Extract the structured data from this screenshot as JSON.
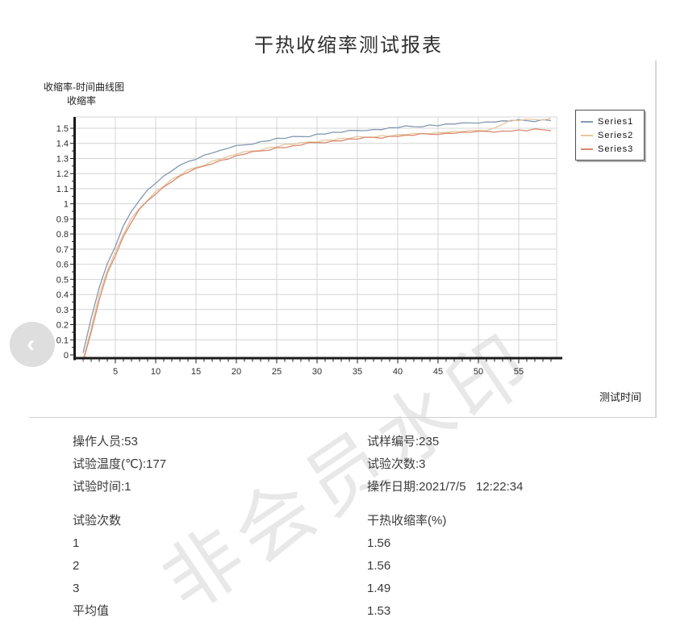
{
  "page": {
    "title": "干热收缩率测试报表",
    "watermark": "非会员水印"
  },
  "nav": {
    "back_glyph": "‹"
  },
  "chart": {
    "panel_label": "收缩率-时间曲线图",
    "y_axis_title": "收缩率",
    "x_axis_title": "测试时间",
    "colors": {
      "grid": "#d4d4d4",
      "axis": "#1b1b1b",
      "legend_border": "#4f4f4f"
    }
  },
  "chart_data": {
    "type": "line",
    "title": "收缩率-时间曲线图",
    "xlabel": "测试时间",
    "ylabel": "收缩率",
    "xlim": [
      0,
      59.7
    ],
    "ylim": [
      0,
      1.575
    ],
    "grid": true,
    "legend_position": "right-top",
    "x_ticks": [
      5,
      10,
      15,
      20,
      25,
      30,
      35,
      40,
      45,
      50,
      55
    ],
    "y_ticks": [
      0,
      0.1,
      0.2,
      0.3,
      0.4,
      0.5,
      0.6,
      0.7,
      0.8,
      0.9,
      1,
      1.1,
      1.2,
      1.3,
      1.4,
      1.5
    ],
    "x": [
      1,
      2,
      3,
      4,
      5,
      6,
      7,
      8,
      9,
      10,
      11,
      12,
      13,
      14,
      15,
      16,
      17,
      18,
      19,
      20,
      21,
      22,
      23,
      24,
      25,
      26,
      27,
      28,
      29,
      30,
      31,
      32,
      33,
      34,
      35,
      36,
      37,
      38,
      39,
      40,
      41,
      42,
      43,
      44,
      45,
      46,
      47,
      48,
      49,
      50,
      51,
      52,
      53,
      54,
      55,
      56,
      57,
      58,
      59
    ],
    "series": [
      {
        "name": "Series1",
        "color": "#8498b0",
        "final_value": 1.56,
        "values": [
          0.02,
          0.24,
          0.45,
          0.6,
          0.72,
          0.85,
          0.95,
          1.03,
          1.09,
          1.14,
          1.18,
          1.22,
          1.25,
          1.28,
          1.3,
          1.32,
          1.34,
          1.35,
          1.37,
          1.38,
          1.39,
          1.4,
          1.41,
          1.42,
          1.43,
          1.435,
          1.44,
          1.445,
          1.45,
          1.46,
          1.465,
          1.47,
          1.475,
          1.48,
          1.485,
          1.49,
          1.49,
          1.495,
          1.5,
          1.505,
          1.51,
          1.51,
          1.515,
          1.52,
          1.52,
          1.525,
          1.53,
          1.53,
          1.535,
          1.54,
          1.54,
          1.545,
          1.545,
          1.55,
          1.55,
          1.55,
          1.55,
          1.555,
          1.555
        ]
      },
      {
        "name": "Series2",
        "color": "#e6c79e",
        "final_value": 1.56,
        "values": [
          -0.03,
          0.18,
          0.4,
          0.56,
          0.68,
          0.8,
          0.9,
          0.97,
          1.03,
          1.08,
          1.12,
          1.16,
          1.19,
          1.22,
          1.24,
          1.26,
          1.28,
          1.3,
          1.31,
          1.33,
          1.34,
          1.35,
          1.36,
          1.37,
          1.38,
          1.39,
          1.395,
          1.4,
          1.41,
          1.415,
          1.42,
          1.425,
          1.43,
          1.435,
          1.44,
          1.44,
          1.445,
          1.45,
          1.45,
          1.455,
          1.46,
          1.46,
          1.465,
          1.47,
          1.47,
          1.475,
          1.475,
          1.48,
          1.48,
          1.485,
          1.49,
          1.5,
          1.53,
          1.55,
          1.552,
          1.555,
          1.558,
          1.56,
          1.565
        ]
      },
      {
        "name": "Series3",
        "color": "#d98b70",
        "final_value": 1.49,
        "values": [
          -0.05,
          0.15,
          0.37,
          0.54,
          0.66,
          0.78,
          0.88,
          0.96,
          1.02,
          1.07,
          1.11,
          1.15,
          1.18,
          1.21,
          1.23,
          1.25,
          1.27,
          1.285,
          1.3,
          1.315,
          1.33,
          1.34,
          1.35,
          1.36,
          1.37,
          1.375,
          1.38,
          1.39,
          1.4,
          1.405,
          1.41,
          1.415,
          1.42,
          1.425,
          1.43,
          1.435,
          1.44,
          1.44,
          1.445,
          1.45,
          1.45,
          1.455,
          1.46,
          1.46,
          1.465,
          1.465,
          1.47,
          1.47,
          1.475,
          1.475,
          1.48,
          1.48,
          1.48,
          1.485,
          1.485,
          1.485,
          1.49,
          1.49,
          1.49
        ]
      }
    ]
  },
  "info": {
    "left": [
      "操作人员:53",
      "试验温度(℃):177",
      "试验时间:1"
    ],
    "right": [
      "试样编号:235",
      "试验次数:3",
      "操作日期:2021/7/5   12:22:34"
    ]
  },
  "results_table": {
    "col1_header": "试验次数",
    "col2_header": "干热收缩率(%)",
    "rows": [
      [
        "1",
        "1.56"
      ],
      [
        "2",
        "1.56"
      ],
      [
        "3",
        "1.49"
      ],
      [
        "平均值",
        "1.53"
      ]
    ]
  }
}
